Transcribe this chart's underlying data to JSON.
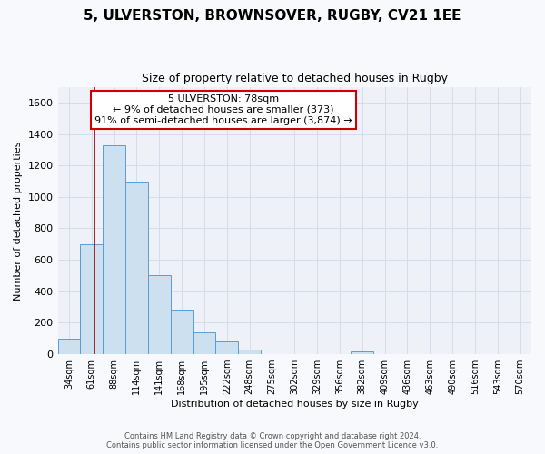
{
  "title": "5, ULVERSTON, BROWNSOVER, RUGBY, CV21 1EE",
  "subtitle": "Size of property relative to detached houses in Rugby",
  "xlabel": "Distribution of detached houses by size in Rugby",
  "ylabel": "Number of detached properties",
  "footer_line1": "Contains HM Land Registry data © Crown copyright and database right 2024.",
  "footer_line2": "Contains public sector information licensed under the Open Government Licence v3.0.",
  "bin_labels": [
    "34sqm",
    "61sqm",
    "88sqm",
    "114sqm",
    "141sqm",
    "168sqm",
    "195sqm",
    "222sqm",
    "248sqm",
    "275sqm",
    "302sqm",
    "329sqm",
    "356sqm",
    "382sqm",
    "409sqm",
    "436sqm",
    "463sqm",
    "490sqm",
    "516sqm",
    "543sqm",
    "570sqm"
  ],
  "bar_values": [
    100,
    700,
    1330,
    1100,
    500,
    285,
    140,
    80,
    30,
    0,
    0,
    0,
    0,
    20,
    0,
    0,
    0,
    0,
    0,
    0,
    0
  ],
  "bar_color": "#cce0f0",
  "bar_edge_color": "#5b9bd5",
  "bar_edge_width": 0.7,
  "marker_color": "#aa0000",
  "ylim": [
    0,
    1700
  ],
  "yticks": [
    0,
    200,
    400,
    600,
    800,
    1000,
    1200,
    1400,
    1600
  ],
  "annotation_text_line1": "5 ULVERSTON: 78sqm",
  "annotation_text_line2": "← 9% of detached houses are smaller (373)",
  "annotation_text_line3": "91% of semi-detached houses are larger (3,874) →",
  "annotation_box_color": "#ffffff",
  "annotation_box_edge": "#cc0000",
  "grid_color": "#d0daea",
  "bg_color": "#f8f9fc",
  "plot_bg_color": "#eef2f8",
  "title_fontsize": 11,
  "subtitle_fontsize": 9,
  "annotation_fontsize": 8,
  "ylabel_fontsize": 8,
  "xlabel_fontsize": 8,
  "footer_fontsize": 6,
  "ytick_fontsize": 8,
  "xtick_fontsize": 7
}
